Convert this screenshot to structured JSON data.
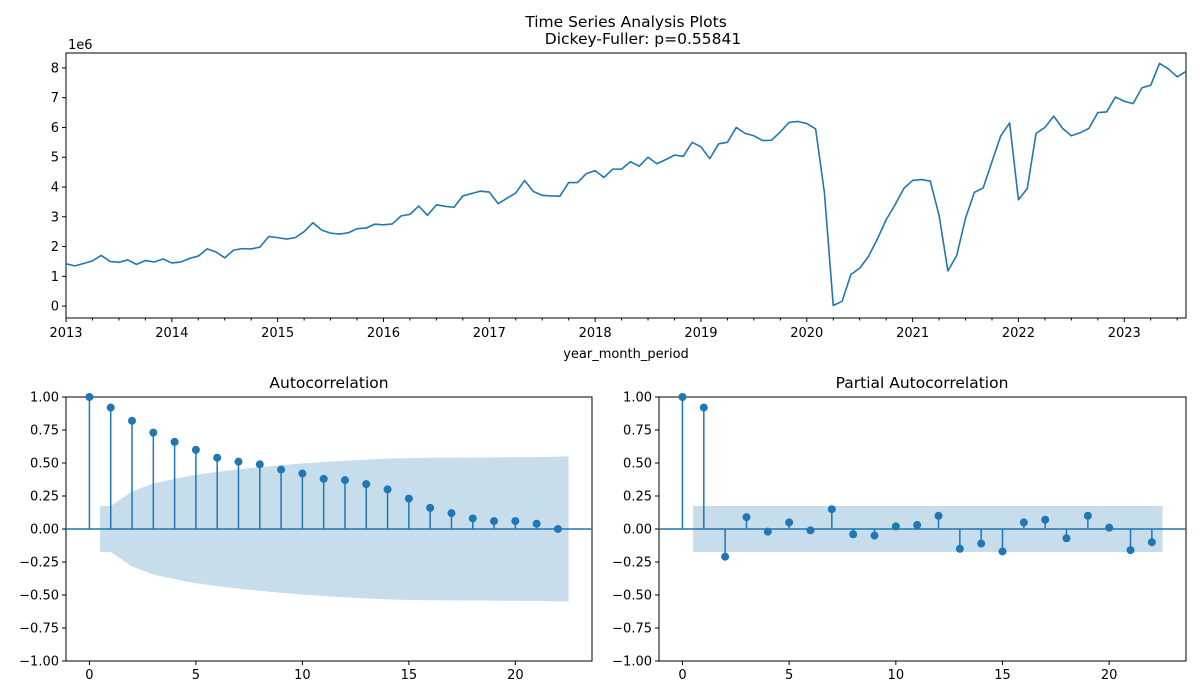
{
  "figure": {
    "title_line1": "Time Series Analysis Plots",
    "title_line2": "Dickey-Fuller: p=0.55841"
  },
  "chart_data": [
    {
      "type": "line",
      "title": "Time Series Analysis Plots\nDickey-Fuller: p=0.55841",
      "xlabel": "year_month_period",
      "ylabel": "",
      "y_offset_label": "1e6",
      "y_scale": 1000000,
      "x_start": "2013-01",
      "x_frequency": "monthly",
      "xlim": [
        "2013-01",
        "2023-08"
      ],
      "ylim": [
        -0.4,
        8.5
      ],
      "x_ticks": [
        "2013",
        "2014",
        "2015",
        "2016",
        "2017",
        "2018",
        "2019",
        "2020",
        "2021",
        "2022",
        "2023"
      ],
      "y_ticks": [
        "0",
        "1",
        "2",
        "3",
        "4",
        "5",
        "6",
        "7",
        "8"
      ],
      "color": "#1f77b4",
      "values": [
        1.42,
        1.35,
        1.43,
        1.52,
        1.7,
        1.5,
        1.47,
        1.55,
        1.4,
        1.53,
        1.48,
        1.58,
        1.45,
        1.48,
        1.6,
        1.68,
        1.92,
        1.82,
        1.62,
        1.88,
        1.93,
        1.92,
        1.98,
        2.34,
        2.3,
        2.25,
        2.3,
        2.5,
        2.8,
        2.55,
        2.45,
        2.42,
        2.46,
        2.6,
        2.62,
        2.75,
        2.73,
        2.76,
        3.03,
        3.08,
        3.36,
        3.05,
        3.4,
        3.35,
        3.32,
        3.7,
        3.78,
        3.86,
        3.83,
        3.44,
        3.62,
        3.8,
        4.22,
        3.85,
        3.72,
        3.7,
        3.69,
        4.15,
        4.15,
        4.45,
        4.55,
        4.32,
        4.6,
        4.6,
        4.85,
        4.7,
        5.0,
        4.78,
        4.92,
        5.07,
        5.03,
        5.5,
        5.35,
        4.95,
        5.45,
        5.5,
        6.0,
        5.8,
        5.72,
        5.56,
        5.57,
        5.85,
        6.17,
        6.2,
        6.13,
        5.95,
        3.8,
        0.02,
        0.16,
        1.06,
        1.27,
        1.67,
        2.25,
        2.9,
        3.4,
        3.95,
        4.22,
        4.25,
        4.2,
        3.05,
        1.18,
        1.7,
        2.95,
        3.82,
        3.97,
        4.85,
        5.72,
        6.15,
        3.57,
        3.95,
        5.8,
        6.0,
        6.38,
        5.97,
        5.72,
        5.82,
        5.97,
        6.5,
        6.52,
        7.02,
        6.88,
        6.8,
        7.33,
        7.42,
        8.15,
        7.97,
        7.7,
        7.88
      ]
    },
    {
      "type": "stem",
      "title": "Autocorrelation",
      "xlabel": "",
      "ylabel": "",
      "xlim": [
        -1.1,
        23.6
      ],
      "ylim": [
        -1.0,
        1.0
      ],
      "x_ticks": [
        "0",
        "5",
        "10",
        "15",
        "20"
      ],
      "y_ticks": [
        "−1.00",
        "−0.75",
        "−0.50",
        "−0.25",
        "0.00",
        "0.25",
        "0.50",
        "0.75",
        "1.00"
      ],
      "color": "#1f77b4",
      "lags": [
        0,
        1,
        2,
        3,
        4,
        5,
        6,
        7,
        8,
        9,
        10,
        11,
        12,
        13,
        14,
        15,
        16,
        17,
        18,
        19,
        20,
        21,
        22
      ],
      "values": [
        1.0,
        0.92,
        0.82,
        0.73,
        0.66,
        0.6,
        0.54,
        0.51,
        0.49,
        0.45,
        0.42,
        0.38,
        0.37,
        0.34,
        0.3,
        0.23,
        0.16,
        0.12,
        0.08,
        0.06,
        0.06,
        0.04,
        0.0
      ],
      "confidence_band": {
        "x": [
          0.5,
          1,
          2,
          3,
          4,
          5,
          6,
          7,
          8,
          9,
          10,
          11,
          12,
          13,
          14,
          15,
          16,
          17,
          18,
          19,
          20,
          21,
          22,
          22.5
        ],
        "upper": [
          0.174,
          0.174,
          0.284,
          0.345,
          0.38,
          0.411,
          0.433,
          0.452,
          0.469,
          0.483,
          0.497,
          0.508,
          0.517,
          0.526,
          0.533,
          0.537,
          0.54,
          0.541,
          0.542,
          0.543,
          0.544,
          0.545,
          0.548,
          0.55
        ]
      }
    },
    {
      "type": "stem",
      "title": "Partial Autocorrelation",
      "xlabel": "",
      "ylabel": "",
      "xlim": [
        -1.1,
        23.6
      ],
      "ylim": [
        -1.0,
        1.0
      ],
      "x_ticks": [
        "0",
        "5",
        "10",
        "15",
        "20"
      ],
      "y_ticks": [
        "−1.00",
        "−0.75",
        "−0.50",
        "−0.25",
        "0.00",
        "0.25",
        "0.50",
        "0.75",
        "1.00"
      ],
      "color": "#1f77b4",
      "lags": [
        0,
        1,
        2,
        3,
        4,
        5,
        6,
        7,
        8,
        9,
        10,
        11,
        12,
        13,
        14,
        15,
        16,
        17,
        18,
        19,
        20,
        21,
        22
      ],
      "values": [
        1.0,
        0.92,
        -0.21,
        0.09,
        -0.02,
        0.05,
        -0.01,
        0.15,
        -0.04,
        -0.05,
        0.02,
        0.03,
        0.1,
        -0.15,
        -0.11,
        -0.17,
        0.05,
        0.07,
        -0.07,
        0.1,
        0.01,
        -0.16,
        -0.1
      ],
      "confidence_band": {
        "x": [
          0.5,
          22.5
        ],
        "upper": [
          0.174,
          0.174
        ]
      }
    }
  ]
}
